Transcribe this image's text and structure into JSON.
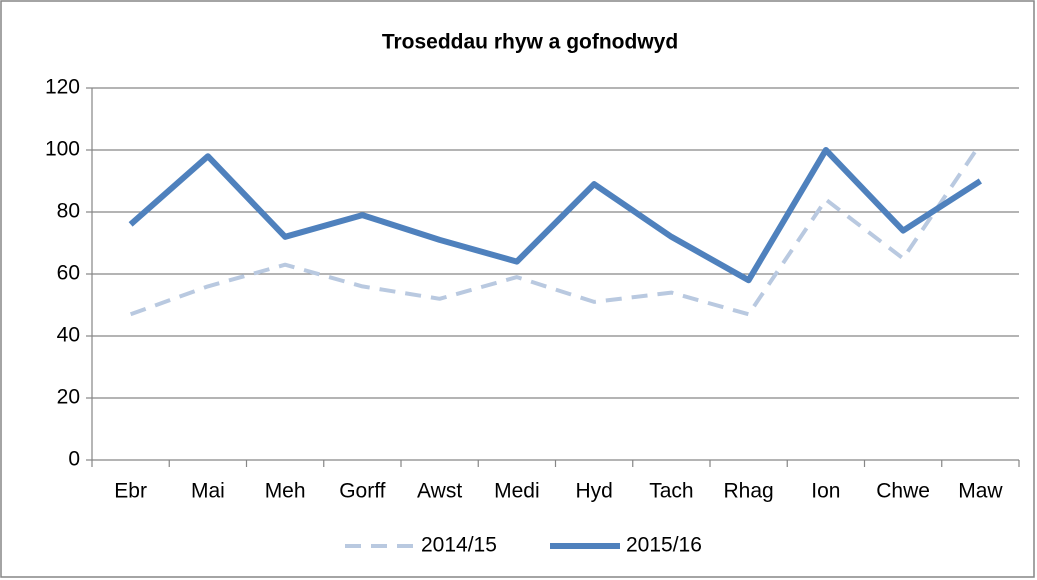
{
  "chart_data": {
    "type": "line",
    "title": "Troseddau rhyw a gofnodwyd",
    "categories": [
      "Ebr",
      "Mai",
      "Meh",
      "Gorff",
      "Awst",
      "Medi",
      "Hyd",
      "Tach",
      "Rhag",
      "Ion",
      "Chwe",
      "Maw"
    ],
    "series": [
      {
        "name": "2014/15",
        "color": "#b9c9e0",
        "dashed": true,
        "values": [
          47,
          56,
          63,
          56,
          52,
          59,
          51,
          54,
          47,
          84,
          65,
          102
        ]
      },
      {
        "name": "2015/16",
        "color": "#4f81bd",
        "dashed": false,
        "values": [
          76,
          98,
          72,
          79,
          71,
          64,
          89,
          72,
          58,
          100,
          74,
          90
        ]
      }
    ],
    "ylim": [
      0,
      120
    ],
    "yticks": [
      0,
      20,
      40,
      60,
      80,
      100,
      120
    ],
    "grid": true,
    "legend": "bottom"
  }
}
